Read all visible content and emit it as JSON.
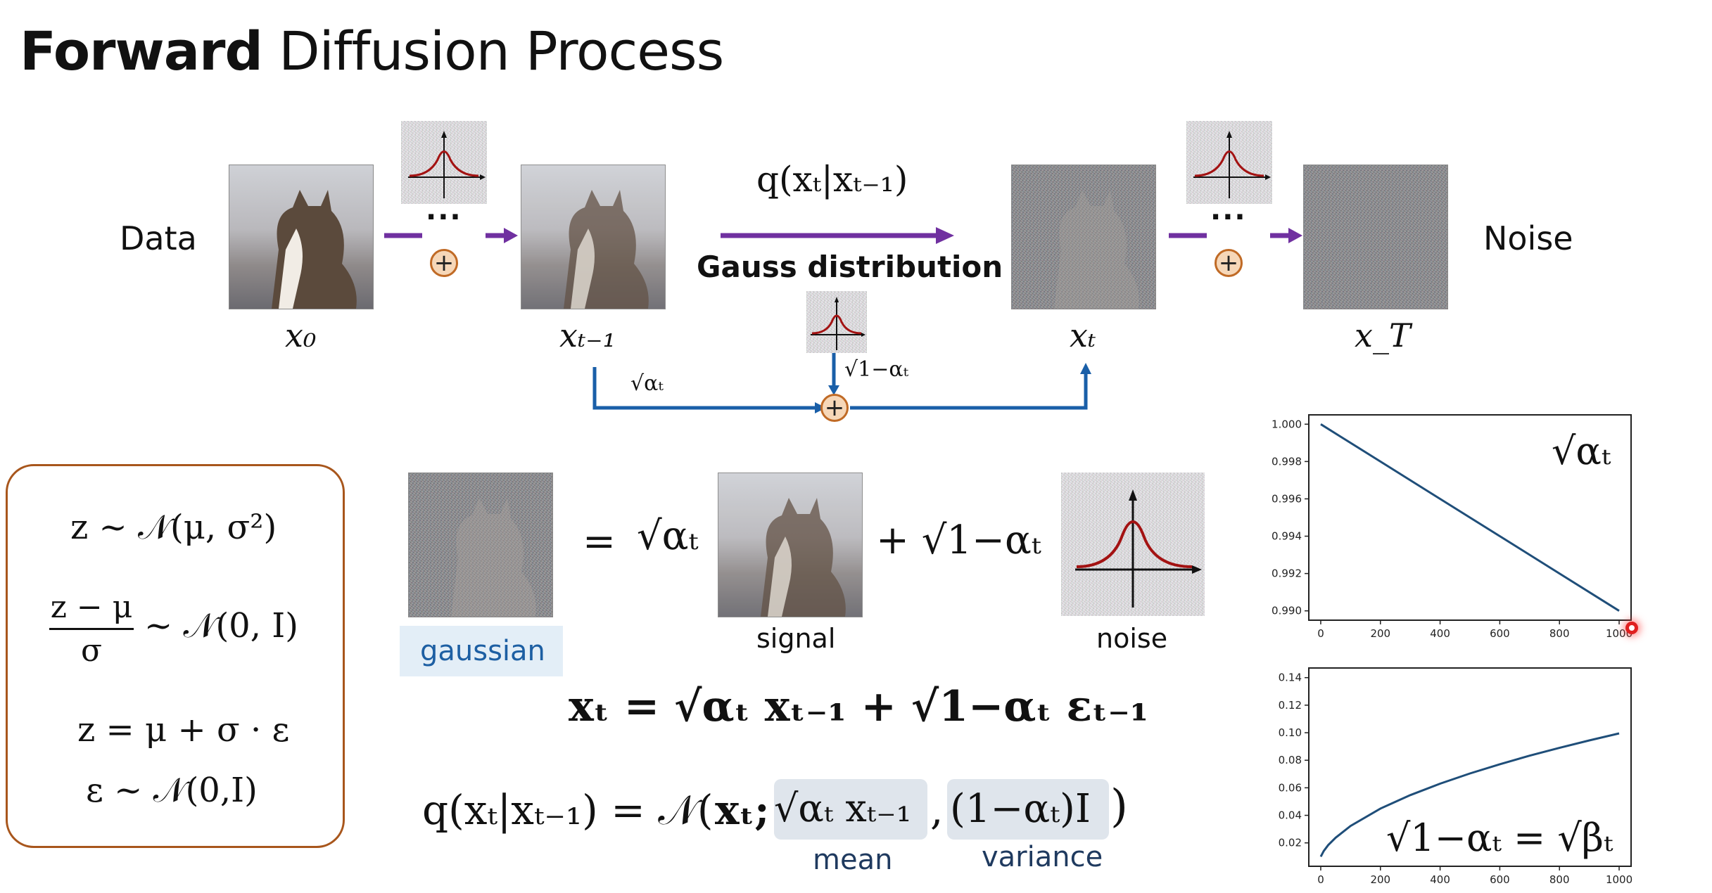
{
  "title": {
    "bold": "Forward",
    "rest": " Diffusion Process"
  },
  "diagram": {
    "data_label": "Data",
    "noise_label": "Noise",
    "x0": "x₀",
    "xt_minus_1": "xₜ₋₁",
    "xt": "xₜ",
    "xT": "x_T",
    "q_label": "q(xₜ|xₜ₋₁)",
    "gauss_label": "Gauss distribution",
    "dots": "···",
    "sqrt_alpha": "√αₜ",
    "sqrt_one_minus_alpha": "√1−αₜ",
    "plus": "+"
  },
  "box": {
    "line1": "z ~ 𝒩(μ,  σ²)",
    "frac_num": "z − μ",
    "frac_den": "σ",
    "line2_rest": "~ 𝒩(0,  I)",
    "line3": "z = μ + σ · ε",
    "line4": "ε ~ 𝒩(0,I)"
  },
  "equation_images": {
    "equals": "=",
    "sqrt_alpha": "√αₜ",
    "plus_sqrt": "+ √1−αₜ",
    "gaussian": "gaussian",
    "signal": "signal",
    "noise": "noise"
  },
  "formulas": {
    "xt_eq": "xₜ = √αₜ xₜ₋₁ + √1−αₜ εₜ₋₁",
    "q_lhs": "q(xₜ|xₜ₋₁) = 𝒩(",
    "q_arg1": "xₜ;",
    "q_mean": "√αₜ xₜ₋₁",
    "q_comma": ",",
    "q_var": "(1−αₜ)I",
    "q_close": ")",
    "mean_label": "mean",
    "variance_label": "variance"
  },
  "chart_data": [
    {
      "type": "line",
      "x": [
        0,
        200,
        400,
        600,
        800,
        1000
      ],
      "y": [
        1.0,
        0.998,
        0.996,
        0.994,
        0.992,
        0.99
      ],
      "xticks": [
        "0",
        "200",
        "400",
        "600",
        "800",
        "1000"
      ],
      "yticks": [
        "1.000",
        "0.998",
        "0.996",
        "0.994",
        "0.992",
        "0.990"
      ],
      "ylim": [
        0.9895,
        1.0005
      ],
      "xlim": [
        -40,
        1040
      ],
      "annotation": "√αₜ",
      "color": "#1f4e79"
    },
    {
      "type": "line",
      "x": [
        0,
        10,
        25,
        50,
        100,
        200,
        300,
        400,
        500,
        600,
        700,
        800,
        900,
        1000
      ],
      "y": [
        0.01,
        0.0141,
        0.0184,
        0.0238,
        0.0323,
        0.0449,
        0.0547,
        0.063,
        0.0704,
        0.0771,
        0.0833,
        0.089,
        0.0944,
        0.0995
      ],
      "xticks": [
        "0",
        "200",
        "400",
        "600",
        "800",
        "1000"
      ],
      "yticks": [
        "0.02",
        "0.04",
        "0.06",
        "0.08",
        "0.10",
        "0.12",
        "0.14"
      ],
      "ylim": [
        0.003,
        0.147
      ],
      "xlim": [
        -40,
        1040
      ],
      "annotation": "√1−αₜ = √βₜ",
      "color": "#1f4e79"
    }
  ]
}
